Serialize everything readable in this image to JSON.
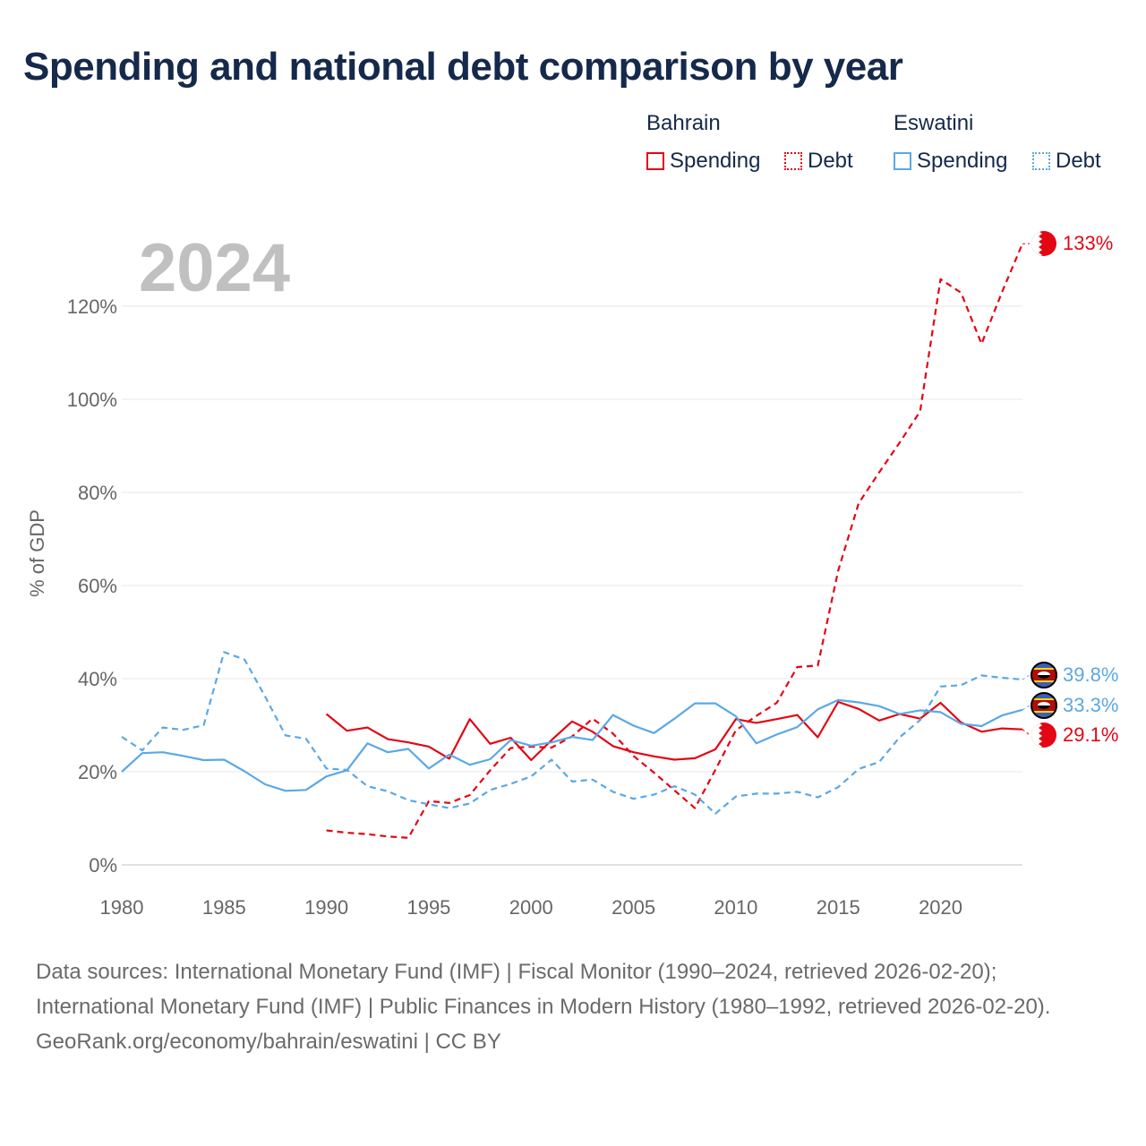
{
  "title": "Spending and national debt comparison by year",
  "current_year": "2024",
  "legend": {
    "groups": [
      {
        "country": "Bahrain",
        "color": "#e30613",
        "items": [
          {
            "label": "Spending",
            "style": "solid"
          },
          {
            "label": "Debt",
            "style": "dotted"
          }
        ]
      },
      {
        "country": "Eswatini",
        "color": "#5aa8e6",
        "items": [
          {
            "label": "Spending",
            "style": "solid"
          },
          {
            "label": "Debt",
            "style": "dotted"
          }
        ]
      }
    ]
  },
  "footer": {
    "sources": "Data sources: International Monetary Fund (IMF) | Fiscal Monitor (1990–2024, retrieved 2026-02-20); International Monetary Fund (IMF) | Public Finances in Modern History (1980–1992, retrieved 2026-02-20).",
    "credit": "GeoRank.org/economy/bahrain/eswatini | CC BY"
  },
  "chart_data": {
    "type": "line",
    "title": "Spending and national debt comparison by year",
    "xlabel": "",
    "ylabel": "% of GDP",
    "xlim": [
      1980,
      2024
    ],
    "ylim": [
      0,
      130
    ],
    "x_ticks": [
      1980,
      1985,
      1990,
      1995,
      2000,
      2005,
      2010,
      2015,
      2020
    ],
    "x_tick_labels": [
      "1980",
      "1985",
      "1990",
      "1995",
      "2000",
      "2005",
      "2010",
      "2015",
      "2020"
    ],
    "y_ticks": [
      0,
      20,
      40,
      60,
      80,
      100,
      120
    ],
    "y_tick_labels": [
      "0%",
      "20%",
      "40%",
      "60%",
      "80%",
      "100%",
      "120%"
    ],
    "grid": true,
    "series": [
      {
        "name": "Bahrain Spending",
        "country": "Bahrain",
        "kind": "Spending",
        "color": "#e30613",
        "dash": false,
        "end_label": "29.1%",
        "points": [
          [
            1990,
            32.4
          ],
          [
            1991,
            28.8
          ],
          [
            1992,
            29.5
          ],
          [
            1993,
            27.0
          ],
          [
            1994,
            26.3
          ],
          [
            1995,
            25.4
          ],
          [
            1996,
            22.8
          ],
          [
            1997,
            31.3
          ],
          [
            1998,
            26.0
          ],
          [
            1999,
            27.3
          ],
          [
            2000,
            22.5
          ],
          [
            2001,
            26.8
          ],
          [
            2002,
            30.8
          ],
          [
            2003,
            28.6
          ],
          [
            2004,
            25.5
          ],
          [
            2005,
            24.2
          ],
          [
            2006,
            23.3
          ],
          [
            2007,
            22.6
          ],
          [
            2008,
            22.9
          ],
          [
            2009,
            24.8
          ],
          [
            2010,
            31.3
          ],
          [
            2011,
            30.5
          ],
          [
            2012,
            31.3
          ],
          [
            2013,
            32.2
          ],
          [
            2014,
            27.4
          ],
          [
            2015,
            35.0
          ],
          [
            2016,
            33.5
          ],
          [
            2017,
            31.0
          ],
          [
            2018,
            32.4
          ],
          [
            2019,
            31.4
          ],
          [
            2020,
            34.8
          ],
          [
            2021,
            30.6
          ],
          [
            2022,
            28.6
          ],
          [
            2023,
            29.3
          ],
          [
            2024,
            29.1
          ]
        ]
      },
      {
        "name": "Bahrain Debt",
        "country": "Bahrain",
        "kind": "Debt",
        "color": "#e30613",
        "dash": true,
        "end_label": "133%",
        "points": [
          [
            1990,
            7.4
          ],
          [
            1991,
            6.9
          ],
          [
            1992,
            6.6
          ],
          [
            1993,
            6.1
          ],
          [
            1994,
            5.8
          ],
          [
            1995,
            13.7
          ],
          [
            1996,
            13.3
          ],
          [
            1997,
            15.0
          ],
          [
            1998,
            20.3
          ],
          [
            1999,
            25.1
          ],
          [
            2000,
            25.4
          ],
          [
            2001,
            25.2
          ],
          [
            2002,
            27.6
          ],
          [
            2003,
            31.4
          ],
          [
            2004,
            28.2
          ],
          [
            2005,
            23.4
          ],
          [
            2006,
            19.8
          ],
          [
            2007,
            16.0
          ],
          [
            2008,
            12.2
          ],
          [
            2009,
            20.4
          ],
          [
            2010,
            28.9
          ],
          [
            2011,
            32.0
          ],
          [
            2012,
            34.8
          ],
          [
            2013,
            42.5
          ],
          [
            2014,
            42.8
          ],
          [
            2015,
            63.2
          ],
          [
            2016,
            77.7
          ],
          [
            2017,
            84.3
          ],
          [
            2018,
            90.7
          ],
          [
            2019,
            97.4
          ],
          [
            2020,
            125.8
          ],
          [
            2021,
            122.9
          ],
          [
            2022,
            111.9
          ],
          [
            2023,
            123.0
          ],
          [
            2024,
            133.4
          ]
        ]
      },
      {
        "name": "Eswatini Spending",
        "country": "Eswatini",
        "kind": "Spending",
        "color": "#5aa8e6",
        "dash": false,
        "end_label": "33.3%",
        "points": [
          [
            1980,
            20.0
          ],
          [
            1981,
            24.0
          ],
          [
            1982,
            24.2
          ],
          [
            1983,
            23.4
          ],
          [
            1984,
            22.5
          ],
          [
            1985,
            22.6
          ],
          [
            1986,
            20.1
          ],
          [
            1987,
            17.3
          ],
          [
            1988,
            15.9
          ],
          [
            1989,
            16.1
          ],
          [
            1990,
            19.0
          ],
          [
            1991,
            20.3
          ],
          [
            1992,
            26.1
          ],
          [
            1993,
            24.2
          ],
          [
            1994,
            24.9
          ],
          [
            1995,
            20.7
          ],
          [
            1996,
            23.7
          ],
          [
            1997,
            21.5
          ],
          [
            1998,
            22.7
          ],
          [
            1999,
            26.8
          ],
          [
            2000,
            25.6
          ],
          [
            2001,
            26.3
          ],
          [
            2002,
            27.5
          ],
          [
            2003,
            26.8
          ],
          [
            2004,
            32.2
          ],
          [
            2005,
            29.9
          ],
          [
            2006,
            28.3
          ],
          [
            2007,
            31.4
          ],
          [
            2008,
            34.7
          ],
          [
            2009,
            34.7
          ],
          [
            2010,
            31.9
          ],
          [
            2011,
            26.1
          ],
          [
            2012,
            28.0
          ],
          [
            2013,
            29.6
          ],
          [
            2014,
            33.4
          ],
          [
            2015,
            35.4
          ],
          [
            2016,
            34.9
          ],
          [
            2017,
            34.1
          ],
          [
            2018,
            32.4
          ],
          [
            2019,
            33.2
          ],
          [
            2020,
            32.8
          ],
          [
            2021,
            30.3
          ],
          [
            2022,
            29.8
          ],
          [
            2023,
            32.1
          ],
          [
            2024,
            33.3
          ]
        ]
      },
      {
        "name": "Eswatini Debt",
        "country": "Eswatini",
        "kind": "Debt",
        "color": "#5aa8e6",
        "dash": true,
        "end_label": "39.8%",
        "points": [
          [
            1980,
            27.5
          ],
          [
            1981,
            24.6
          ],
          [
            1982,
            29.5
          ],
          [
            1983,
            29.0
          ],
          [
            1984,
            30.0
          ],
          [
            1985,
            45.7
          ],
          [
            1986,
            44.1
          ],
          [
            1987,
            36.2
          ],
          [
            1988,
            27.8
          ],
          [
            1989,
            27.1
          ],
          [
            1990,
            20.7
          ],
          [
            1991,
            20.4
          ],
          [
            1992,
            16.9
          ],
          [
            1993,
            15.8
          ],
          [
            1994,
            13.9
          ],
          [
            1995,
            13.0
          ],
          [
            1996,
            12.2
          ],
          [
            1997,
            13.2
          ],
          [
            1998,
            16.1
          ],
          [
            1999,
            17.4
          ],
          [
            2000,
            19.0
          ],
          [
            2001,
            22.6
          ],
          [
            2002,
            17.9
          ],
          [
            2003,
            18.3
          ],
          [
            2004,
            15.7
          ],
          [
            2005,
            14.2
          ],
          [
            2006,
            15.1
          ],
          [
            2007,
            16.9
          ],
          [
            2008,
            15.1
          ],
          [
            2009,
            11.0
          ],
          [
            2010,
            14.7
          ],
          [
            2011,
            15.3
          ],
          [
            2012,
            15.3
          ],
          [
            2013,
            15.7
          ],
          [
            2014,
            14.5
          ],
          [
            2015,
            16.7
          ],
          [
            2016,
            20.6
          ],
          [
            2017,
            22.1
          ],
          [
            2018,
            27.4
          ],
          [
            2019,
            31.1
          ],
          [
            2020,
            38.3
          ],
          [
            2021,
            38.6
          ],
          [
            2022,
            40.7
          ],
          [
            2023,
            40.2
          ],
          [
            2024,
            39.8
          ]
        ]
      }
    ]
  }
}
